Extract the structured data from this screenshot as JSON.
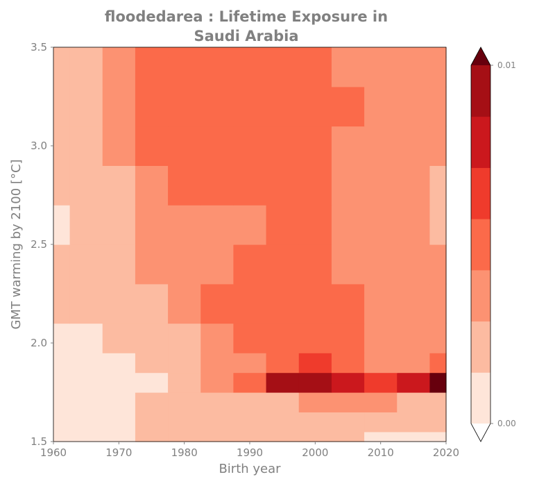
{
  "chart_data": {
    "type": "heatmap",
    "variant": "filled-contour",
    "title": "floodedarea : Lifetime Exposure in Saudi Arabia",
    "title_lines": [
      "floodedarea : Lifetime Exposure in",
      "Saudi Arabia"
    ],
    "xlabel": "Birth year",
    "ylabel": "GMT warming by 2100 [°C]",
    "xlim": [
      1960,
      2020
    ],
    "ylim": [
      1.5,
      3.5
    ],
    "xticks": [
      "1960",
      "1970",
      "1980",
      "1990",
      "2000",
      "2010",
      "2020"
    ],
    "yticks": [
      "1.5",
      "2.0",
      "2.5",
      "3.0",
      "3.5"
    ],
    "x": [
      1960,
      1965,
      1970,
      1975,
      1980,
      1985,
      1990,
      1995,
      2000,
      2005,
      2010,
      2015,
      2020
    ],
    "y": [
      1.5,
      1.6,
      1.7,
      1.8,
      1.9,
      2.0,
      2.2,
      2.4,
      2.6,
      2.8,
      3.0,
      3.2,
      3.4,
      3.5
    ],
    "z_level_index": [
      [
        0,
        0,
        0,
        1,
        1,
        1,
        1,
        1,
        1,
        1,
        0,
        0,
        0
      ],
      [
        0,
        0,
        0,
        1,
        1,
        1,
        1,
        1,
        1,
        1,
        1,
        1,
        1
      ],
      [
        0,
        0,
        0,
        1,
        1,
        1,
        1,
        1,
        2,
        2,
        2,
        1,
        1
      ],
      [
        0,
        0,
        0,
        0,
        1,
        2,
        3,
        6,
        6,
        5,
        4,
        5,
        7
      ],
      [
        0,
        0,
        0,
        1,
        1,
        2,
        2,
        3,
        4,
        3,
        2,
        2,
        3
      ],
      [
        0,
        0,
        1,
        1,
        1,
        2,
        3,
        3,
        3,
        3,
        2,
        2,
        2
      ],
      [
        1,
        1,
        1,
        1,
        2,
        3,
        3,
        3,
        3,
        3,
        2,
        2,
        2
      ],
      [
        1,
        1,
        1,
        2,
        2,
        2,
        3,
        3,
        3,
        2,
        2,
        2,
        2
      ],
      [
        0,
        1,
        1,
        2,
        2,
        2,
        2,
        3,
        3,
        2,
        2,
        2,
        1
      ],
      [
        1,
        1,
        1,
        2,
        3,
        3,
        3,
        3,
        3,
        2,
        2,
        2,
        1
      ],
      [
        1,
        1,
        2,
        3,
        3,
        3,
        3,
        3,
        3,
        2,
        2,
        2,
        2
      ],
      [
        1,
        1,
        2,
        3,
        3,
        3,
        3,
        3,
        3,
        3,
        2,
        2,
        2
      ],
      [
        1,
        1,
        2,
        3,
        3,
        3,
        3,
        3,
        3,
        2,
        2,
        2,
        2
      ],
      [
        1,
        1,
        2,
        3,
        3,
        3,
        3,
        3,
        3,
        2,
        2,
        2,
        2
      ]
    ],
    "colorbar": {
      "vmin": 0.0,
      "vmax": 0.01,
      "tick_labels": [
        "0.01",
        "0.00"
      ],
      "levels": 7,
      "extend": "both",
      "colors": [
        "#fee5d9",
        "#fcbba1",
        "#fc9272",
        "#fb6a4a",
        "#ef3b2c",
        "#cb181d",
        "#a50f15",
        "#67000d"
      ],
      "under_color": "#ffffff",
      "over_color": "#67000d"
    },
    "text_color": "#808080"
  }
}
